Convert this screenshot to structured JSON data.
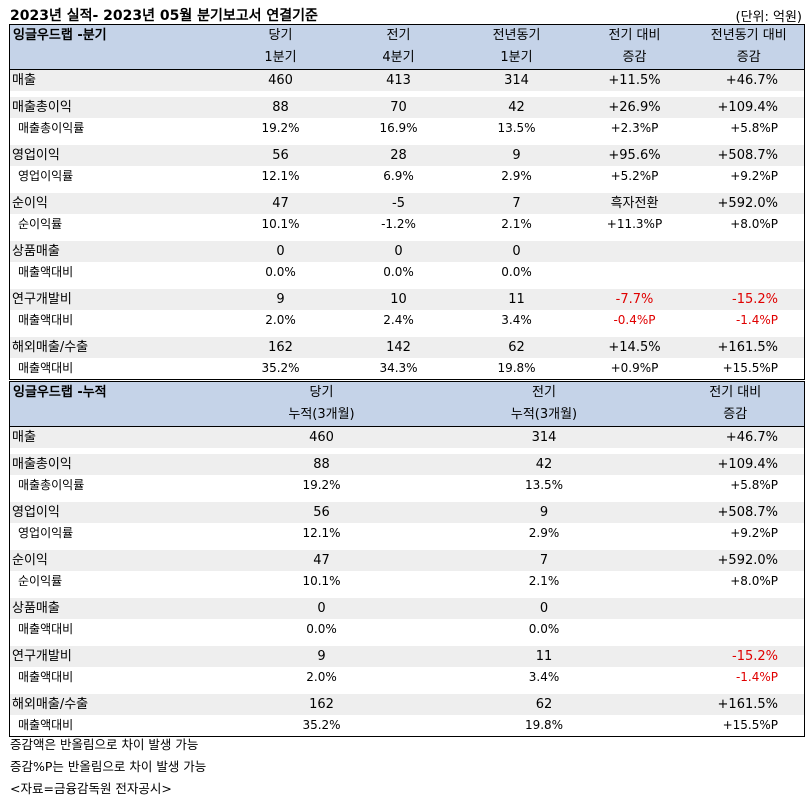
{
  "header": {
    "title": "2023년 실적- 2023년 05월 분기보고서 연결기준",
    "unit": "(단위: 억원)"
  },
  "quarter": {
    "name": "잉글우드랩 -분기",
    "cols": [
      [
        "당기",
        "1분기"
      ],
      [
        "전기",
        "4분기"
      ],
      [
        "전년동기",
        "1분기"
      ],
      [
        "전기 대비",
        "증감"
      ],
      [
        "전년동기 대비",
        "증감"
      ]
    ],
    "groups": [
      {
        "main": [
          "매출",
          "460",
          "413",
          "314",
          "+11.5%",
          "+46.7%"
        ]
      },
      {
        "main": [
          "매출총이익",
          "88",
          "70",
          "42",
          "+26.9%",
          "+109.4%"
        ],
        "sub": [
          "매출총이익률",
          "19.2%",
          "16.9%",
          "13.5%",
          "+2.3%P",
          "+5.8%P"
        ]
      },
      {
        "main": [
          "영업이익",
          "56",
          "28",
          "9",
          "+95.6%",
          "+508.7%"
        ],
        "sub": [
          "영업이익률",
          "12.1%",
          "6.9%",
          "2.9%",
          "+5.2%P",
          "+9.2%P"
        ]
      },
      {
        "main": [
          "순이익",
          "47",
          "-5",
          "7",
          "흑자전환",
          "+592.0%"
        ],
        "sub": [
          "순이익률",
          "10.1%",
          "-1.2%",
          "2.1%",
          "+11.3%P",
          "+8.0%P"
        ]
      },
      {
        "main": [
          "상품매출",
          "0",
          "0",
          "0",
          "",
          ""
        ],
        "sub": [
          "매출액대비",
          "0.0%",
          "0.0%",
          "0.0%",
          "",
          ""
        ]
      },
      {
        "main": [
          "연구개발비",
          "9",
          "10",
          "11",
          "-7.7%",
          "-15.2%"
        ],
        "sub": [
          "매출액대비",
          "2.0%",
          "2.4%",
          "3.4%",
          "-0.4%P",
          "-1.4%P"
        ]
      },
      {
        "main": [
          "해외매출/수출",
          "162",
          "142",
          "62",
          "+14.5%",
          "+161.5%"
        ],
        "sub": [
          "매출액대비",
          "35.2%",
          "34.3%",
          "19.8%",
          "+0.9%P",
          "+15.5%P"
        ]
      }
    ]
  },
  "cumulative": {
    "name": "잉글우드랩 -누적",
    "cols": [
      [
        "당기",
        "누적(3개월)"
      ],
      [
        "전기",
        "누적(3개월)"
      ],
      [
        "전기 대비",
        "증감"
      ]
    ],
    "groups": [
      {
        "main": [
          "매출",
          "460",
          "314",
          "+46.7%"
        ]
      },
      {
        "main": [
          "매출총이익",
          "88",
          "42",
          "+109.4%"
        ],
        "sub": [
          "매출총이익률",
          "19.2%",
          "13.5%",
          "+5.8%P"
        ]
      },
      {
        "main": [
          "영업이익",
          "56",
          "9",
          "+508.7%"
        ],
        "sub": [
          "영업이익률",
          "12.1%",
          "2.9%",
          "+9.2%P"
        ]
      },
      {
        "main": [
          "순이익",
          "47",
          "7",
          "+592.0%"
        ],
        "sub": [
          "순이익률",
          "10.1%",
          "2.1%",
          "+8.0%P"
        ]
      },
      {
        "main": [
          "상품매출",
          "0",
          "0",
          ""
        ],
        "sub": [
          "매출액대비",
          "0.0%",
          "0.0%",
          ""
        ]
      },
      {
        "main": [
          "연구개발비",
          "9",
          "11",
          "-15.2%"
        ],
        "sub": [
          "매출액대비",
          "2.0%",
          "3.4%",
          "-1.4%P"
        ]
      },
      {
        "main": [
          "해외매출/수출",
          "162",
          "62",
          "+161.5%"
        ],
        "sub": [
          "매출액대비",
          "35.2%",
          "19.8%",
          "+15.5%P"
        ]
      }
    ]
  },
  "notes": [
    "증감액은 반올림으로 차이 발생 가능",
    "증감%P는 반올림으로 차이 발생 가능",
    "<자료=금융감독원 전자공시>"
  ],
  "colors": {
    "header_bg": "#c5d3e8",
    "shade_bg": "#eeeeee",
    "negative": "#e00000"
  }
}
